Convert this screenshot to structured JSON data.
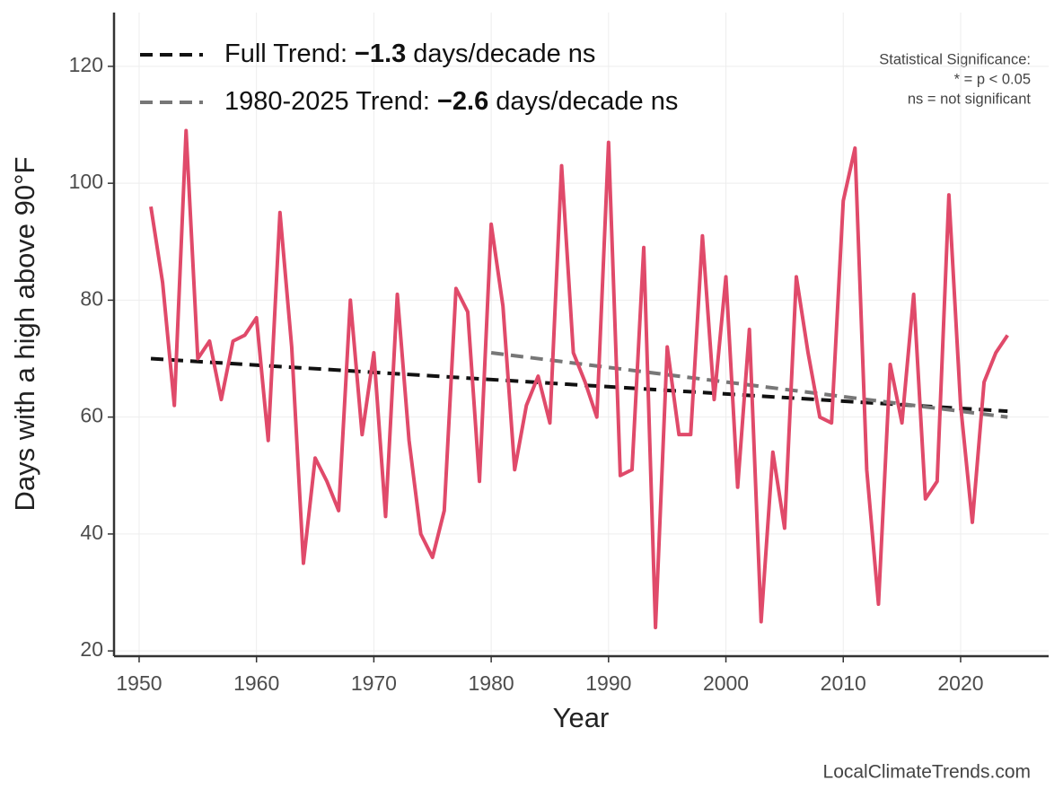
{
  "chart_data": {
    "type": "line",
    "x_label": "Year",
    "y_label": "Days with a high above 90°F",
    "x": [
      1951,
      1952,
      1953,
      1954,
      1955,
      1956,
      1957,
      1958,
      1959,
      1960,
      1961,
      1962,
      1963,
      1964,
      1965,
      1966,
      1967,
      1968,
      1969,
      1970,
      1971,
      1972,
      1973,
      1974,
      1975,
      1976,
      1977,
      1978,
      1979,
      1980,
      1981,
      1982,
      1983,
      1984,
      1985,
      1986,
      1987,
      1988,
      1989,
      1990,
      1991,
      1992,
      1993,
      1994,
      1995,
      1996,
      1997,
      1998,
      1999,
      2000,
      2001,
      2002,
      2003,
      2004,
      2005,
      2006,
      2007,
      2008,
      2009,
      2010,
      2011,
      2012,
      2013,
      2014,
      2015,
      2016,
      2017,
      2018,
      2019,
      2020,
      2021,
      2022,
      2023,
      2024
    ],
    "series": [
      {
        "color": "#e04a6a",
        "values": [
          96,
          83,
          62,
          109,
          70,
          73,
          63,
          73,
          74,
          77,
          56,
          95,
          72,
          35,
          53,
          49,
          44,
          80,
          57,
          71,
          43,
          81,
          56,
          40,
          36,
          44,
          82,
          78,
          49,
          93,
          79,
          51,
          62,
          67,
          59,
          103,
          71,
          66,
          60,
          107,
          50,
          51,
          89,
          24,
          72,
          57,
          57,
          91,
          63,
          84,
          48,
          75,
          25,
          54,
          41,
          84,
          71,
          60,
          59,
          97,
          106,
          51,
          28,
          69,
          59,
          81,
          46,
          49,
          98,
          62,
          42,
          66,
          71,
          74
        ]
      }
    ],
    "trends": [
      {
        "label_parts": [
          "Full Trend:",
          "−1.3",
          "days/decade ns"
        ],
        "color": "#111111",
        "x": [
          1951,
          2024
        ],
        "values": [
          70,
          61
        ]
      },
      {
        "label_parts": [
          "1980-2025 Trend:",
          "−2.6",
          "days/decade ns"
        ],
        "color": "#777777",
        "x": [
          1980,
          2024
        ],
        "values": [
          71,
          60
        ]
      }
    ],
    "note": [
      "Statistical Significance:",
      "* = p < 0.05",
      "ns = not significant"
    ],
    "source": "LocalClimateTrends.com",
    "xlim": [
      1947.86,
      2027.5
    ],
    "ylim": [
      19.1,
      129.2
    ],
    "xticks": [
      1950,
      1960,
      1970,
      1980,
      1990,
      2000,
      2010,
      2020
    ],
    "yticks": [
      20,
      40,
      60,
      80,
      100,
      120
    ],
    "grid": true
  }
}
